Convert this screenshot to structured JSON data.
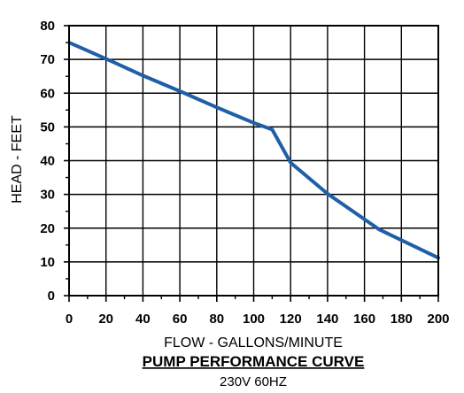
{
  "chart_data": {
    "type": "line",
    "title": "PUMP PERFORMANCE CURVE",
    "subtitle": "230V 60HZ",
    "xlabel": "FLOW - GALLONS/MINUTE",
    "ylabel": "HEAD - FEET",
    "xlim": [
      0,
      200
    ],
    "ylim": [
      0,
      80
    ],
    "xticks": [
      0,
      20,
      40,
      60,
      80,
      100,
      120,
      140,
      160,
      180,
      200
    ],
    "yticks": [
      0,
      10,
      20,
      30,
      40,
      50,
      60,
      70,
      80
    ],
    "grid": true,
    "series": [
      {
        "color": "#1f5fa8",
        "x": [
          0,
          20,
          40,
          60,
          80,
          100,
          110,
          120,
          140,
          168,
          200
        ],
        "y": [
          75,
          70.2,
          65.2,
          60.6,
          55.8,
          51.2,
          49.2,
          39.4,
          30.2,
          19.6,
          11.2
        ]
      }
    ]
  }
}
